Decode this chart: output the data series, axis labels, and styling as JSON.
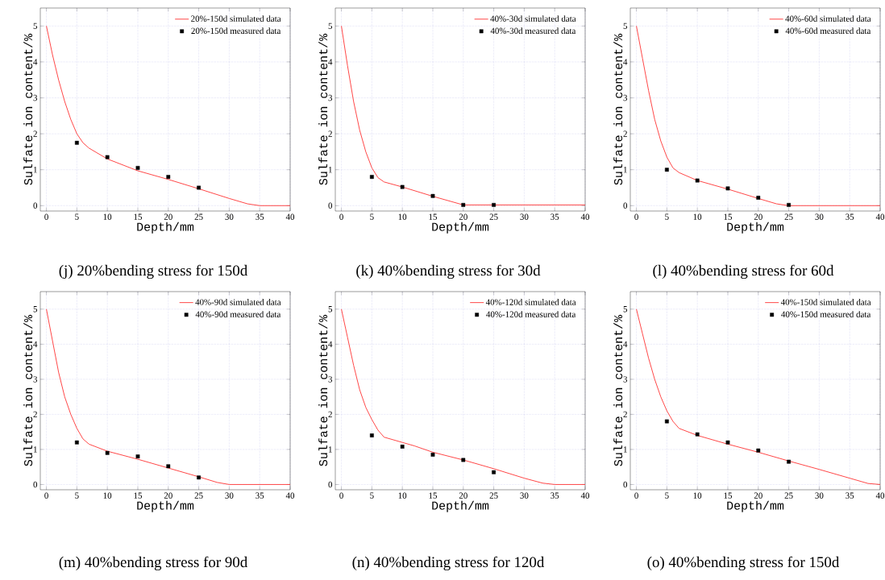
{
  "chart_data": [
    {
      "type": "line",
      "title": "(j) 20%bending stress for 150d",
      "xlabel": "Depth/mm",
      "ylabel": "Sulfate ion content/%",
      "xlim": [
        -1,
        40
      ],
      "ylim": [
        -0.15,
        5.5
      ],
      "xticks": [
        0,
        5,
        10,
        15,
        20,
        25,
        30,
        35,
        40
      ],
      "yticks": [
        0,
        1,
        2,
        3,
        4,
        5
      ],
      "grid": true,
      "legend": "top right",
      "series": [
        {
          "name": "20%-150d  simulated data",
          "type": "line",
          "color": "#ff3333",
          "marker": "none",
          "x": [
            0,
            1,
            2,
            3,
            4,
            5,
            6,
            7,
            10,
            15,
            20,
            25,
            30,
            33,
            35,
            40
          ],
          "values": [
            5,
            4.2,
            3.5,
            2.9,
            2.4,
            2.0,
            1.75,
            1.6,
            1.3,
            0.97,
            0.73,
            0.47,
            0.2,
            0.05,
            0,
            0
          ]
        },
        {
          "name": "20%-150d  measured data",
          "type": "scatter",
          "color": "#000000",
          "marker": "square",
          "x": [
            5,
            10,
            15,
            20,
            25
          ],
          "values": [
            1.75,
            1.35,
            1.05,
            0.8,
            0.5
          ]
        }
      ]
    },
    {
      "type": "line",
      "title": "(k) 40%bending stress for 30d",
      "xlabel": "Depth/mm",
      "ylabel": "Sulfate ion content/%",
      "xlim": [
        -1,
        40
      ],
      "ylim": [
        -0.15,
        5.5
      ],
      "xticks": [
        0,
        5,
        10,
        15,
        20,
        25,
        30,
        35,
        40
      ],
      "yticks": [
        0,
        1,
        2,
        3,
        4,
        5
      ],
      "grid": true,
      "legend": "top right",
      "series": [
        {
          "name": "40%-30d  simulated data",
          "type": "line",
          "color": "#ff3333",
          "marker": "none",
          "x": [
            0,
            1,
            2,
            3,
            4,
            5,
            6,
            7,
            10,
            15,
            20,
            25,
            40
          ],
          "values": [
            5,
            3.9,
            2.9,
            2.1,
            1.5,
            1.05,
            0.78,
            0.66,
            0.52,
            0.26,
            0.02,
            0.02,
            0.02
          ]
        },
        {
          "name": "40%-30d  measured data",
          "type": "scatter",
          "color": "#000000",
          "marker": "square",
          "x": [
            5,
            10,
            15,
            20,
            25
          ],
          "values": [
            0.8,
            0.52,
            0.27,
            0.02,
            0.02
          ]
        }
      ]
    },
    {
      "type": "line",
      "title": "(l) 40%bending stress for 60d",
      "xlabel": "Depth/mm",
      "ylabel": "Sulfate ion content/%",
      "xlim": [
        -1,
        40
      ],
      "ylim": [
        -0.15,
        5.5
      ],
      "xticks": [
        0,
        5,
        10,
        15,
        20,
        25,
        30,
        35,
        40
      ],
      "yticks": [
        0,
        1,
        2,
        3,
        4,
        5
      ],
      "grid": true,
      "legend": "top right",
      "series": [
        {
          "name": "40%-60d  simulated data",
          "type": "line",
          "color": "#ff3333",
          "marker": "none",
          "x": [
            0,
            1,
            2,
            3,
            4,
            5,
            6,
            7,
            10,
            15,
            20,
            23,
            25,
            40
          ],
          "values": [
            5,
            4.1,
            3.2,
            2.4,
            1.8,
            1.35,
            1.05,
            0.92,
            0.7,
            0.46,
            0.2,
            0.05,
            0,
            0
          ]
        },
        {
          "name": "40%-60d  measured data",
          "type": "scatter",
          "color": "#000000",
          "marker": "square",
          "x": [
            5,
            10,
            15,
            20,
            25
          ],
          "values": [
            1.0,
            0.7,
            0.48,
            0.22,
            0.02
          ]
        }
      ]
    },
    {
      "type": "line",
      "title": "(m) 40%bending stress for 90d",
      "xlabel": "Depth/mm",
      "ylabel": "Sulfate ion content/%",
      "xlim": [
        -1,
        40
      ],
      "ylim": [
        -0.15,
        5.5
      ],
      "xticks": [
        0,
        5,
        10,
        15,
        20,
        25,
        30,
        35,
        40
      ],
      "yticks": [
        0,
        1,
        2,
        3,
        4,
        5
      ],
      "grid": true,
      "legend": "top right",
      "series": [
        {
          "name": "40%-90d  simulated data",
          "type": "line",
          "color": "#ff3333",
          "marker": "none",
          "x": [
            0,
            1,
            2,
            3,
            4,
            5,
            6,
            7,
            10,
            15,
            20,
            25,
            28,
            30,
            40
          ],
          "values": [
            5,
            4.1,
            3.2,
            2.5,
            2.0,
            1.6,
            1.3,
            1.15,
            0.95,
            0.72,
            0.47,
            0.22,
            0.06,
            0,
            0
          ]
        },
        {
          "name": "40%-90d  measured data",
          "type": "scatter",
          "color": "#000000",
          "marker": "square",
          "x": [
            5,
            10,
            15,
            20,
            25
          ],
          "values": [
            1.2,
            0.9,
            0.8,
            0.52,
            0.2
          ]
        }
      ]
    },
    {
      "type": "line",
      "title": "(n) 40%bending stress for 120d",
      "xlabel": "Depth/mm",
      "ylabel": "Sulfate ion content/%",
      "xlim": [
        -1,
        40
      ],
      "ylim": [
        -0.15,
        5.5
      ],
      "xticks": [
        0,
        5,
        10,
        15,
        20,
        25,
        30,
        35,
        40
      ],
      "yticks": [
        0,
        1,
        2,
        3,
        4,
        5
      ],
      "grid": true,
      "legend": "top right",
      "series": [
        {
          "name": "40%-120d  simulated data",
          "type": "line",
          "color": "#ff3333",
          "marker": "none",
          "x": [
            0,
            1,
            2,
            3,
            4,
            5,
            6,
            7,
            10,
            12,
            15,
            20,
            25,
            30,
            33,
            35,
            40
          ],
          "values": [
            5,
            4.2,
            3.4,
            2.7,
            2.2,
            1.85,
            1.55,
            1.35,
            1.2,
            1.1,
            0.92,
            0.7,
            0.45,
            0.18,
            0.04,
            0,
            0
          ]
        },
        {
          "name": "40%-120d  measured data",
          "type": "scatter",
          "color": "#000000",
          "marker": "square",
          "x": [
            5,
            10,
            15,
            20,
            25
          ],
          "values": [
            1.4,
            1.08,
            0.85,
            0.7,
            0.35
          ]
        }
      ]
    },
    {
      "type": "line",
      "title": "(o) 40%bending stress for 150d",
      "xlabel": "Depth/mm",
      "ylabel": "Sulfate ion content/%",
      "xlim": [
        -1,
        40
      ],
      "ylim": [
        -0.15,
        5.5
      ],
      "xticks": [
        0,
        5,
        10,
        15,
        20,
        25,
        30,
        35,
        40
      ],
      "yticks": [
        0,
        1,
        2,
        3,
        4,
        5
      ],
      "grid": true,
      "legend": "top right",
      "series": [
        {
          "name": "40%-150d  simulated data",
          "type": "line",
          "color": "#ff3333",
          "marker": "none",
          "x": [
            0,
            1,
            2,
            3,
            4,
            5,
            6,
            7,
            10,
            15,
            20,
            25,
            30,
            35,
            38,
            40
          ],
          "values": [
            5,
            4.3,
            3.6,
            3.0,
            2.5,
            2.1,
            1.8,
            1.6,
            1.4,
            1.15,
            0.92,
            0.67,
            0.43,
            0.18,
            0.03,
            0
          ]
        },
        {
          "name": "40%-150d  measured data",
          "type": "scatter",
          "color": "#000000",
          "marker": "square",
          "x": [
            5,
            10,
            15,
            20,
            25
          ],
          "values": [
            1.8,
            1.43,
            1.2,
            0.97,
            0.65
          ]
        }
      ]
    }
  ]
}
